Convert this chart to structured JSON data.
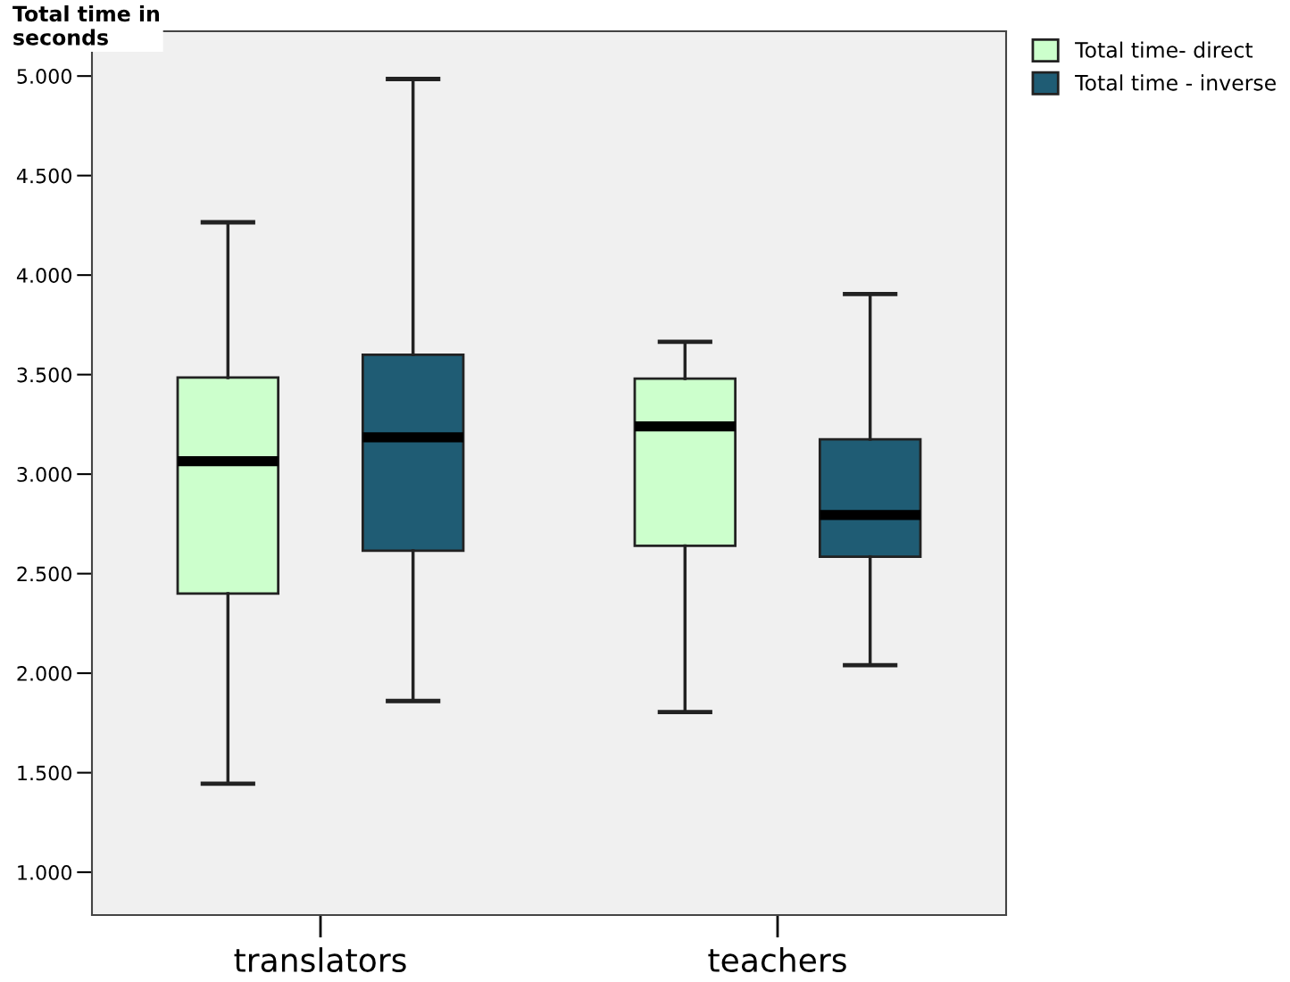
{
  "chart_data": {
    "type": "box",
    "ylabel": "Total time in seconds",
    "categories": [
      "translators",
      "teachers"
    ],
    "series": [
      {
        "name": "Total time- direct",
        "color": "#ccffcc",
        "boxes": [
          {
            "low": 1445,
            "q1": 2400,
            "median": 3065,
            "q3": 3485,
            "high": 4265
          },
          {
            "low": 1805,
            "q1": 2640,
            "median": 3240,
            "q3": 3480,
            "high": 3665
          }
        ]
      },
      {
        "name": "Total time - inverse",
        "color": "#1f5c74",
        "boxes": [
          {
            "low": 1860,
            "q1": 2615,
            "median": 3185,
            "q3": 3600,
            "high": 4985
          },
          {
            "low": 2040,
            "q1": 2585,
            "median": 2795,
            "q3": 3175,
            "high": 3905
          }
        ]
      }
    ],
    "ylim": [
      785,
      5225
    ],
    "yticks": [
      {
        "value": 1000,
        "label": "1.000"
      },
      {
        "value": 1500,
        "label": "1.500"
      },
      {
        "value": 2000,
        "label": "2.000"
      },
      {
        "value": 2500,
        "label": "2.500"
      },
      {
        "value": 3000,
        "label": "3.000"
      },
      {
        "value": 3500,
        "label": "3.500"
      },
      {
        "value": 4000,
        "label": "4.000"
      },
      {
        "value": 4500,
        "label": "4.500"
      },
      {
        "value": 5000,
        "label": "5.000"
      }
    ],
    "grid": false,
    "legend": "top right"
  }
}
